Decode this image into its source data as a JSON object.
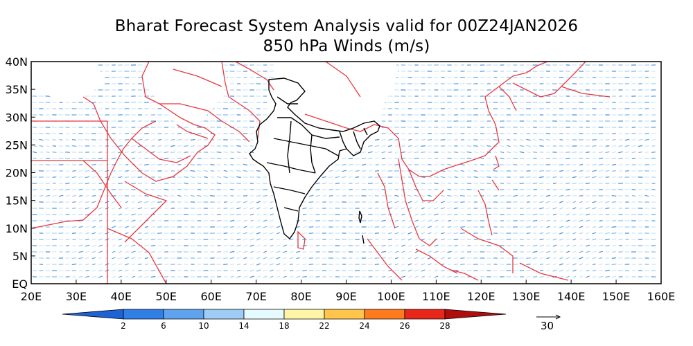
{
  "title_line1": "Bharat Forecast System Analysis valid for 00Z24JAN2026",
  "title_line2": "850 hPa Winds (m/s)",
  "map": {
    "lon_labels": [
      "20E",
      "30E",
      "40E",
      "50E",
      "60E",
      "70E",
      "80E",
      "90E",
      "100E",
      "110E",
      "120E",
      "130E",
      "140E",
      "150E",
      "160E"
    ],
    "lat_labels": [
      "40N",
      "35N",
      "30N",
      "25N",
      "20N",
      "15N",
      "10N",
      "5N",
      "EQ"
    ],
    "lon_range": [
      20,
      160
    ],
    "lat_range": [
      0,
      40
    ],
    "boundary_color": "#e8383d",
    "india_boundary_color": "#000000",
    "vector_color_default": "#4a90e2"
  },
  "colorbar": {
    "labels": [
      "2",
      "6",
      "10",
      "14",
      "18",
      "22",
      "24",
      "26",
      "28"
    ],
    "colors": [
      "#1e63d6",
      "#2f7fe6",
      "#5fa3ee",
      "#9fccf6",
      "#e6fbff",
      "#fff4a8",
      "#ffc44a",
      "#ff7a1c",
      "#e8261a",
      "#b00d0d"
    ]
  },
  "reference_vector": {
    "label": "30"
  }
}
